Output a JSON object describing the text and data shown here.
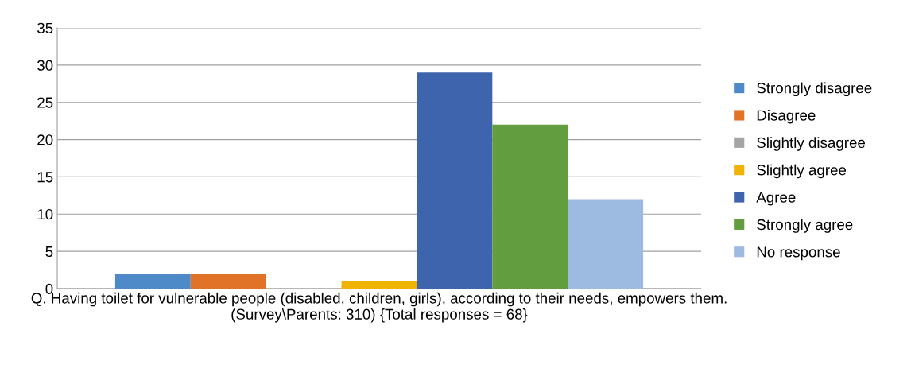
{
  "chart_data": {
    "type": "bar",
    "categories": [
      "Q. Having toilet for vulnerable people (disabled, children, girls), according to their needs, empowers them. (Survey\\Parents: 310) {Total responses = 68}"
    ],
    "series": [
      {
        "name": "Strongly disagree",
        "color": "#4e8ac8",
        "values": [
          2
        ]
      },
      {
        "name": "Disagree",
        "color": "#e07328",
        "values": [
          2
        ]
      },
      {
        "name": "Slightly disagree",
        "color": "#a5a5a5",
        "values": [
          0
        ]
      },
      {
        "name": "Slightly agree",
        "color": "#f0b400",
        "values": [
          1
        ]
      },
      {
        "name": "Agree",
        "color": "#3e64ae",
        "values": [
          29
        ]
      },
      {
        "name": "Strongly agree",
        "color": "#629d3f",
        "values": [
          22
        ]
      },
      {
        "name": "No response",
        "color": "#9dbbe0",
        "values": [
          12
        ]
      }
    ],
    "ylim": [
      0,
      35
    ],
    "yticks": [
      0,
      5,
      10,
      15,
      20,
      25,
      30,
      35
    ],
    "grid": "y",
    "legend": "right"
  }
}
